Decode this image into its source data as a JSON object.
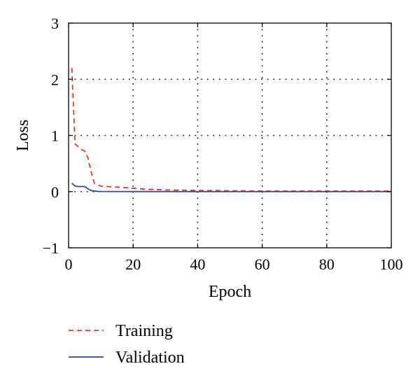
{
  "chart_data": {
    "type": "line",
    "title": "",
    "xlabel": "Epoch",
    "ylabel": "Loss",
    "xlim": [
      0,
      100
    ],
    "ylim": [
      -1,
      3
    ],
    "xticks": [
      0,
      20,
      40,
      60,
      80,
      100
    ],
    "yticks": [
      -1,
      0,
      1,
      2,
      3
    ],
    "ytick_labels": [
      "−1",
      "0",
      "1",
      "2",
      "3"
    ],
    "grid": "dotted",
    "legend_position": "below",
    "series": [
      {
        "name": "Training",
        "color": "#e8332a",
        "style": "dashed",
        "x": [
          1,
          2,
          3,
          4,
          5,
          6,
          7,
          8,
          9,
          10,
          12,
          15,
          18,
          20,
          22,
          25,
          28,
          30,
          35,
          40,
          45,
          50,
          55,
          60,
          70,
          80,
          90,
          100
        ],
        "y": [
          2.2,
          0.85,
          0.8,
          0.75,
          0.72,
          0.6,
          0.35,
          0.15,
          0.12,
          0.1,
          0.09,
          0.08,
          0.07,
          0.06,
          0.05,
          0.04,
          0.035,
          0.03,
          0.025,
          0.02,
          0.02,
          0.015,
          0.015,
          0.01,
          0.01,
          0.01,
          0.01,
          0.01
        ]
      },
      {
        "name": "Validation",
        "color": "#2e4a9e",
        "style": "solid",
        "x": [
          1,
          2,
          3,
          4,
          5,
          6,
          7,
          8,
          9,
          10,
          12,
          15,
          20,
          30,
          40,
          50,
          60,
          70,
          80,
          90,
          100
        ],
        "y": [
          0.15,
          0.1,
          0.09,
          0.09,
          0.09,
          0.05,
          0.02,
          0.01,
          0.005,
          0.003,
          0.002,
          0.002,
          0.001,
          0.001,
          0.001,
          0.001,
          0.001,
          0.001,
          0.001,
          0.001,
          0.001
        ]
      }
    ]
  }
}
